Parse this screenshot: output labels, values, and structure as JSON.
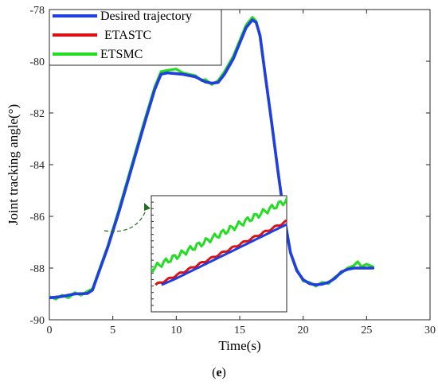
{
  "chart_data": {
    "type": "line",
    "xlabel": "Time(s)",
    "ylabel": "Joint tracking angle(°)",
    "xlim": [
      0,
      30
    ],
    "ylim": [
      -90,
      -78
    ],
    "xticks": [
      0,
      5,
      10,
      15,
      20,
      25,
      30
    ],
    "yticks": [
      -90,
      -88,
      -86,
      -84,
      -82,
      -80,
      -78
    ],
    "grid": false,
    "legend_position": "top-left",
    "caption_prefix": "(",
    "caption_letter": "e",
    "caption_suffix": ")",
    "series": [
      {
        "name": "Desired trajectory",
        "color": "#1f3fe0",
        "x": [
          0,
          1,
          2,
          3,
          3.4,
          3.8,
          4.6,
          5.5,
          6.5,
          7.5,
          8.3,
          8.8,
          9.3,
          10.5,
          11.5,
          12.3,
          12.8,
          13.3,
          13.8,
          14.5,
          15,
          15.5,
          16,
          16.3,
          16.6,
          17,
          17.5,
          18,
          18.5,
          19,
          19.5,
          20,
          20.5,
          21,
          21.5,
          22,
          22.5,
          23,
          23.5,
          24,
          24.5,
          25,
          25.5
        ],
        "y": [
          -89.15,
          -89.1,
          -89,
          -88.98,
          -88.85,
          -88.3,
          -87.2,
          -85.8,
          -84.1,
          -82.4,
          -81.1,
          -80.5,
          -80.45,
          -80.5,
          -80.6,
          -80.8,
          -80.85,
          -80.82,
          -80.5,
          -79.9,
          -79.3,
          -78.7,
          -78.4,
          -78.5,
          -79.0,
          -80.5,
          -82.3,
          -84.2,
          -86.0,
          -87.4,
          -88.1,
          -88.45,
          -88.6,
          -88.65,
          -88.62,
          -88.55,
          -88.4,
          -88.15,
          -88.05,
          -88.0,
          -88.0,
          -88.0,
          -88.0
        ]
      },
      {
        "name": "ETASTC",
        "color": "#dd1111",
        "x": [
          0,
          1,
          2,
          3,
          3.4,
          3.8,
          4.6,
          5.5,
          6.5,
          7.5,
          8.3,
          8.8,
          9.3,
          10.5,
          11.5,
          12.3,
          12.8,
          13.3,
          13.8,
          14.5,
          15,
          15.5,
          16,
          16.3,
          16.6,
          17,
          17.5,
          18,
          18.5,
          19,
          19.5,
          20,
          20.5,
          21,
          21.5,
          22,
          22.5,
          23,
          23.5,
          24,
          24.5,
          25,
          25.5
        ],
        "y": [
          -89.15,
          -89.1,
          -89,
          -88.98,
          -88.85,
          -88.3,
          -87.2,
          -85.8,
          -84.1,
          -82.4,
          -81.1,
          -80.5,
          -80.45,
          -80.5,
          -80.6,
          -80.8,
          -80.85,
          -80.82,
          -80.5,
          -79.9,
          -79.3,
          -78.7,
          -78.4,
          -78.5,
          -79.0,
          -80.5,
          -82.3,
          -84.2,
          -86.0,
          -87.4,
          -88.1,
          -88.45,
          -88.6,
          -88.65,
          -88.62,
          -88.55,
          -88.4,
          -88.15,
          -88.05,
          -88.0,
          -88.0,
          -88.0,
          -88.0
        ]
      },
      {
        "name": "ETSMC",
        "color": "#22dd22",
        "x": [
          0,
          0.5,
          1,
          1.5,
          2,
          2.5,
          3,
          3.4,
          3.8,
          4.6,
          5.5,
          6.5,
          7.5,
          8.3,
          8.8,
          9.3,
          10,
          10.5,
          11,
          11.5,
          12,
          12.3,
          12.8,
          13.3,
          13.8,
          14.5,
          15,
          15.5,
          16,
          16.3,
          16.6,
          17,
          17.5,
          18,
          18.5,
          19,
          19.5,
          20,
          20.5,
          21,
          21.5,
          22,
          22.5,
          23,
          23.5,
          24,
          24.3,
          24.6,
          25,
          25.5
        ],
        "y": [
          -89.1,
          -89.2,
          -89.05,
          -89.15,
          -88.95,
          -89.05,
          -88.9,
          -88.8,
          -88.25,
          -87.15,
          -85.7,
          -84.0,
          -82.3,
          -81.0,
          -80.4,
          -80.35,
          -80.3,
          -80.45,
          -80.5,
          -80.55,
          -80.75,
          -80.7,
          -80.9,
          -80.75,
          -80.4,
          -79.8,
          -79.2,
          -78.6,
          -78.3,
          -78.45,
          -79.05,
          -80.5,
          -82.3,
          -84.2,
          -86.0,
          -87.4,
          -88.05,
          -88.5,
          -88.55,
          -88.7,
          -88.55,
          -88.6,
          -88.35,
          -88.2,
          -88.0,
          -87.9,
          -87.75,
          -87.95,
          -87.85,
          -87.95
        ]
      }
    ]
  }
}
